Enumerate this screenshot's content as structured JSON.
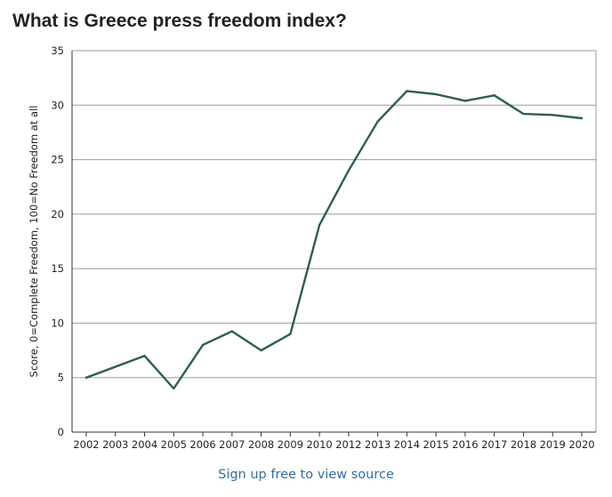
{
  "title": "What is Greece press freedom index?",
  "source_link": "Sign up free to view source",
  "colors": {
    "line": "#2d5e4c",
    "grid": "#999999",
    "axis": "#333333",
    "link": "#2f6ea6"
  },
  "chart_data": {
    "type": "line",
    "title": "What is Greece press freedom index?",
    "xlabel": "",
    "ylabel": "Score, 0=Complete Freedom, 100=No Freedom at all",
    "categories": [
      "2002",
      "2003",
      "2004",
      "2005",
      "2006",
      "2007",
      "2008",
      "2009",
      "2010",
      "2012",
      "2013",
      "2014",
      "2015",
      "2016",
      "2017",
      "2018",
      "2019",
      "2020"
    ],
    "ylim": [
      0,
      35
    ],
    "yticks": [
      0,
      5,
      10,
      15,
      20,
      25,
      30,
      35
    ],
    "grid": true,
    "series": [
      {
        "values": [
          5.0,
          6.0,
          7.0,
          4.0,
          8.0,
          9.25,
          7.5,
          9.0,
          19.0,
          24.0,
          28.5,
          31.3,
          31.0,
          30.4,
          30.9,
          29.2,
          29.1,
          28.8
        ]
      }
    ]
  }
}
